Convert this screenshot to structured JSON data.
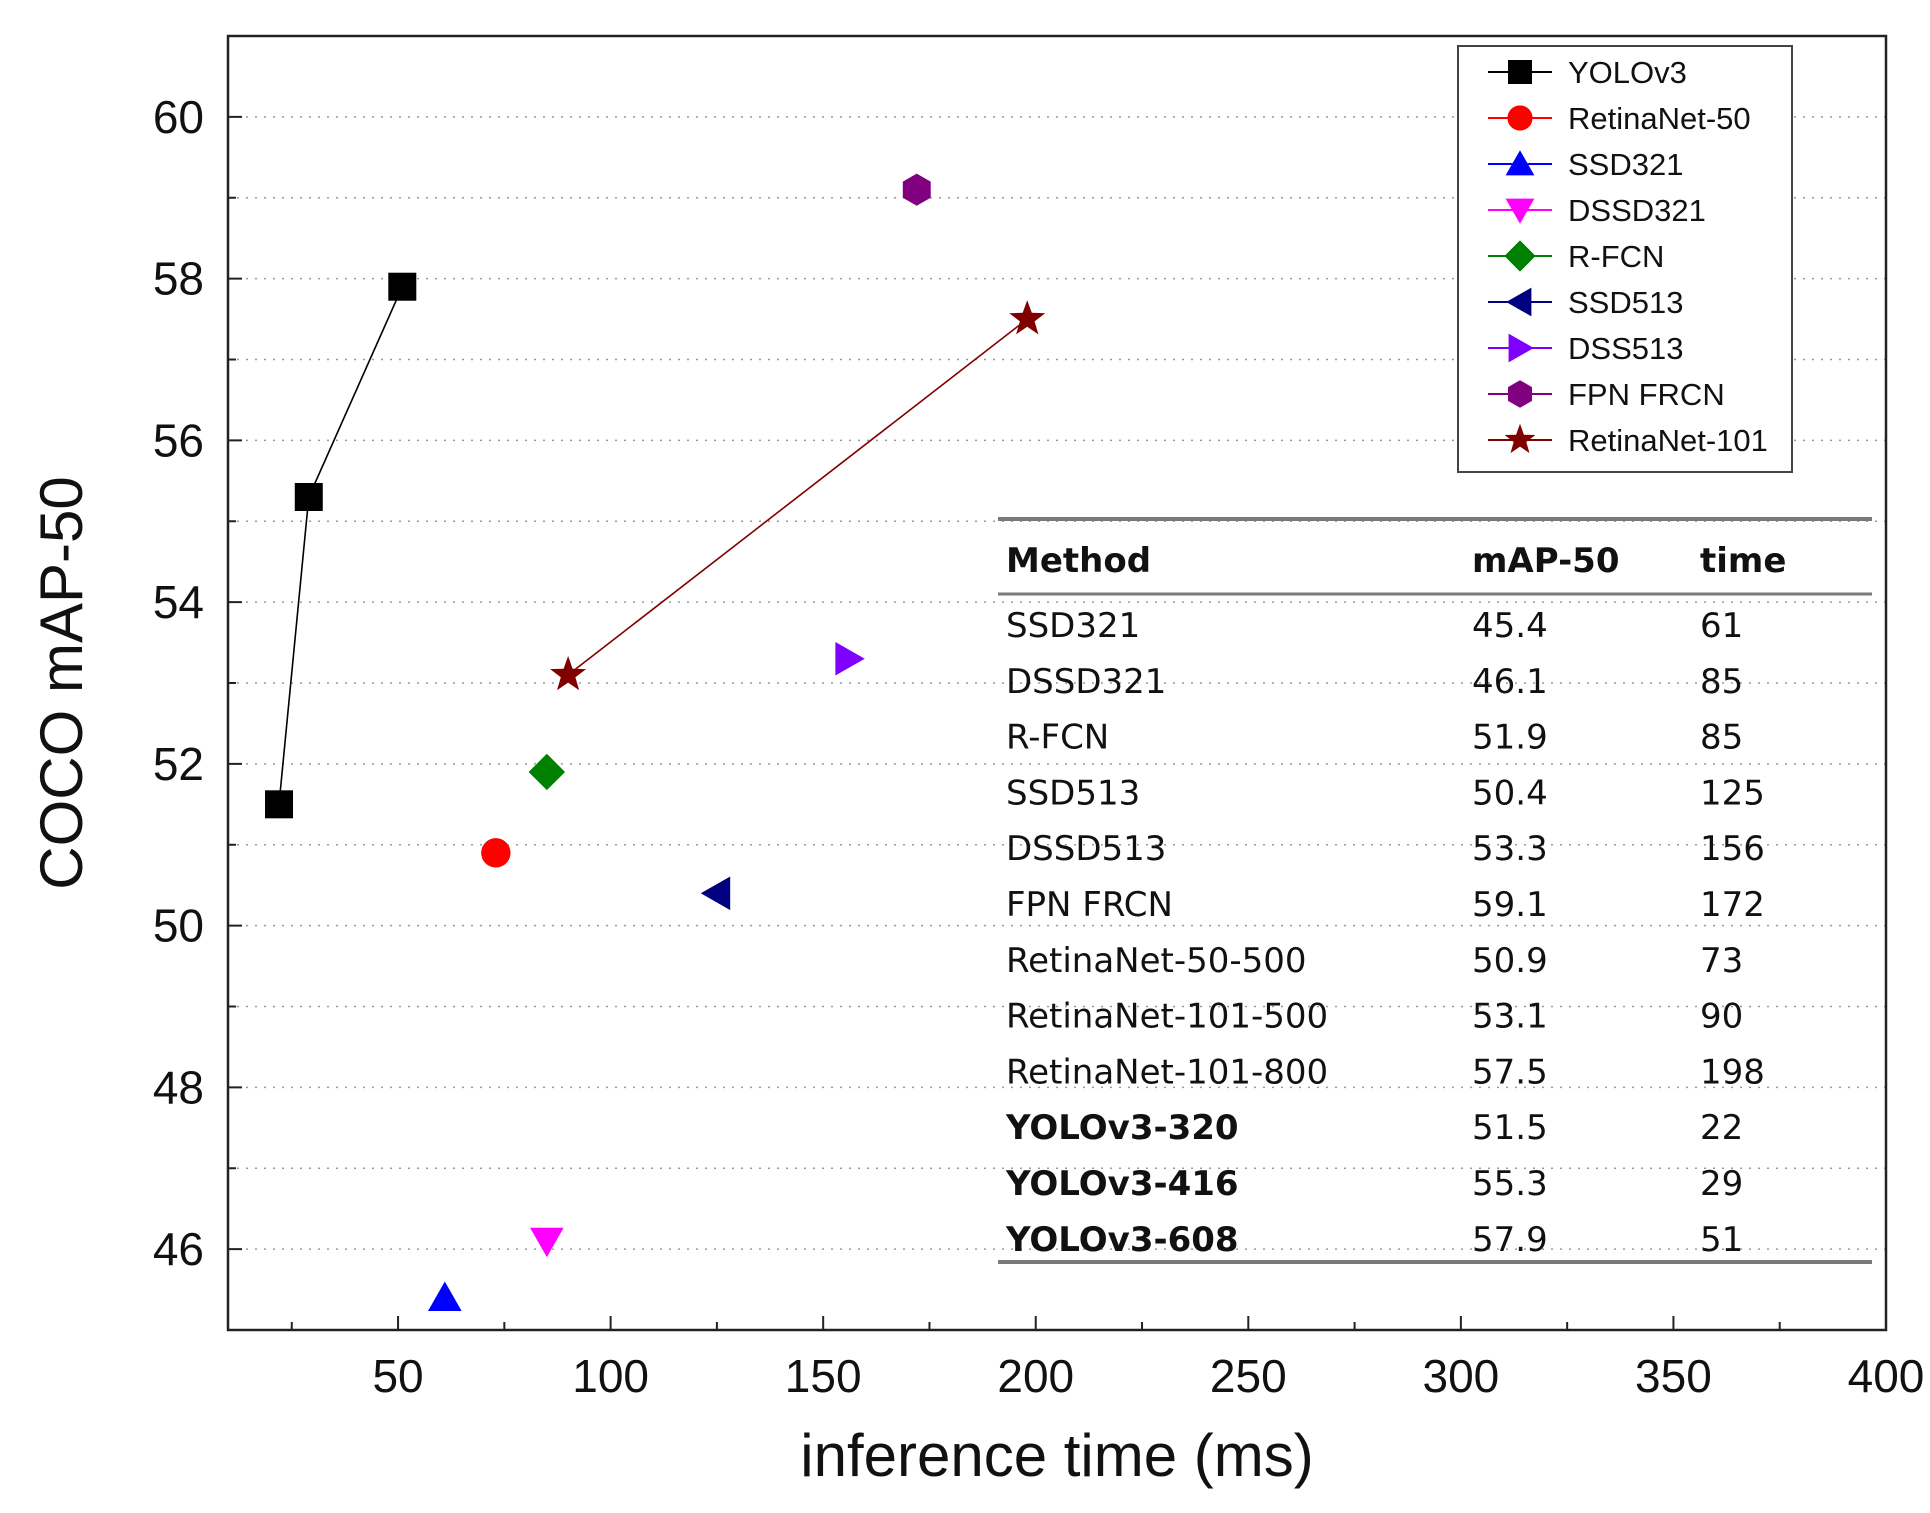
{
  "chart_data": {
    "type": "scatter",
    "xlabel": "inference time (ms)",
    "ylabel": "COCO mAP-50",
    "xlim": [
      10,
      400
    ],
    "ylim": [
      45,
      61
    ],
    "xticks": [
      50,
      100,
      150,
      200,
      250,
      300,
      350,
      400
    ],
    "yticks": [
      46,
      48,
      50,
      52,
      54,
      56,
      58,
      60
    ],
    "legend_position": "top-right",
    "series": [
      {
        "name": "YOLOv3",
        "marker": "square",
        "color": "#000000",
        "line": true,
        "points": [
          [
            22,
            51.5
          ],
          [
            29,
            55.3
          ],
          [
            51,
            57.9
          ]
        ]
      },
      {
        "name": "RetinaNet-50",
        "marker": "circle",
        "color": "#ff0000",
        "line": false,
        "points": [
          [
            73,
            50.9
          ]
        ]
      },
      {
        "name": "SSD321",
        "marker": "triangle-up",
        "color": "#0000ff",
        "line": false,
        "points": [
          [
            61,
            45.4
          ]
        ]
      },
      {
        "name": "DSSD321",
        "marker": "triangle-down",
        "color": "#ff00ff",
        "line": false,
        "points": [
          [
            85,
            46.1
          ]
        ]
      },
      {
        "name": "R-FCN",
        "marker": "diamond",
        "color": "#008000",
        "line": false,
        "points": [
          [
            85,
            51.9
          ]
        ]
      },
      {
        "name": "SSD513",
        "marker": "triangle-left",
        "color": "#000080",
        "line": false,
        "points": [
          [
            125,
            50.4
          ]
        ]
      },
      {
        "name": "DSS513",
        "marker": "triangle-right",
        "color": "#8000ff",
        "line": false,
        "points": [
          [
            156,
            53.3
          ]
        ]
      },
      {
        "name": "FPN FRCN",
        "marker": "hexagon",
        "color": "#800080",
        "line": false,
        "points": [
          [
            172,
            59.1
          ]
        ]
      },
      {
        "name": "RetinaNet-101",
        "marker": "star",
        "color": "#800000",
        "line": true,
        "points": [
          [
            90,
            53.1
          ],
          [
            198,
            57.5
          ]
        ]
      }
    ],
    "table": {
      "headers": [
        "Method",
        "mAP-50",
        "time"
      ],
      "rows": [
        {
          "method": "SSD321",
          "map": "45.4",
          "time": "61",
          "bold": false
        },
        {
          "method": "DSSD321",
          "map": "46.1",
          "time": "85",
          "bold": false
        },
        {
          "method": "R-FCN",
          "map": "51.9",
          "time": "85",
          "bold": false
        },
        {
          "method": "SSD513",
          "map": "50.4",
          "time": "125",
          "bold": false
        },
        {
          "method": "DSSD513",
          "map": "53.3",
          "time": "156",
          "bold": false
        },
        {
          "method": "FPN FRCN",
          "map": "59.1",
          "time": "172",
          "bold": false
        },
        {
          "method": "RetinaNet-50-500",
          "map": "50.9",
          "time": "73",
          "bold": false
        },
        {
          "method": "RetinaNet-101-500",
          "map": "53.1",
          "time": "90",
          "bold": false
        },
        {
          "method": "RetinaNet-101-800",
          "map": "57.5",
          "time": "198",
          "bold": false
        },
        {
          "method": "YOLOv3-320",
          "map": "51.5",
          "time": "22",
          "bold": true
        },
        {
          "method": "YOLOv3-416",
          "map": "55.3",
          "time": "29",
          "bold": true
        },
        {
          "method": "YOLOv3-608",
          "map": "57.9",
          "time": "51",
          "bold": true
        }
      ]
    }
  }
}
